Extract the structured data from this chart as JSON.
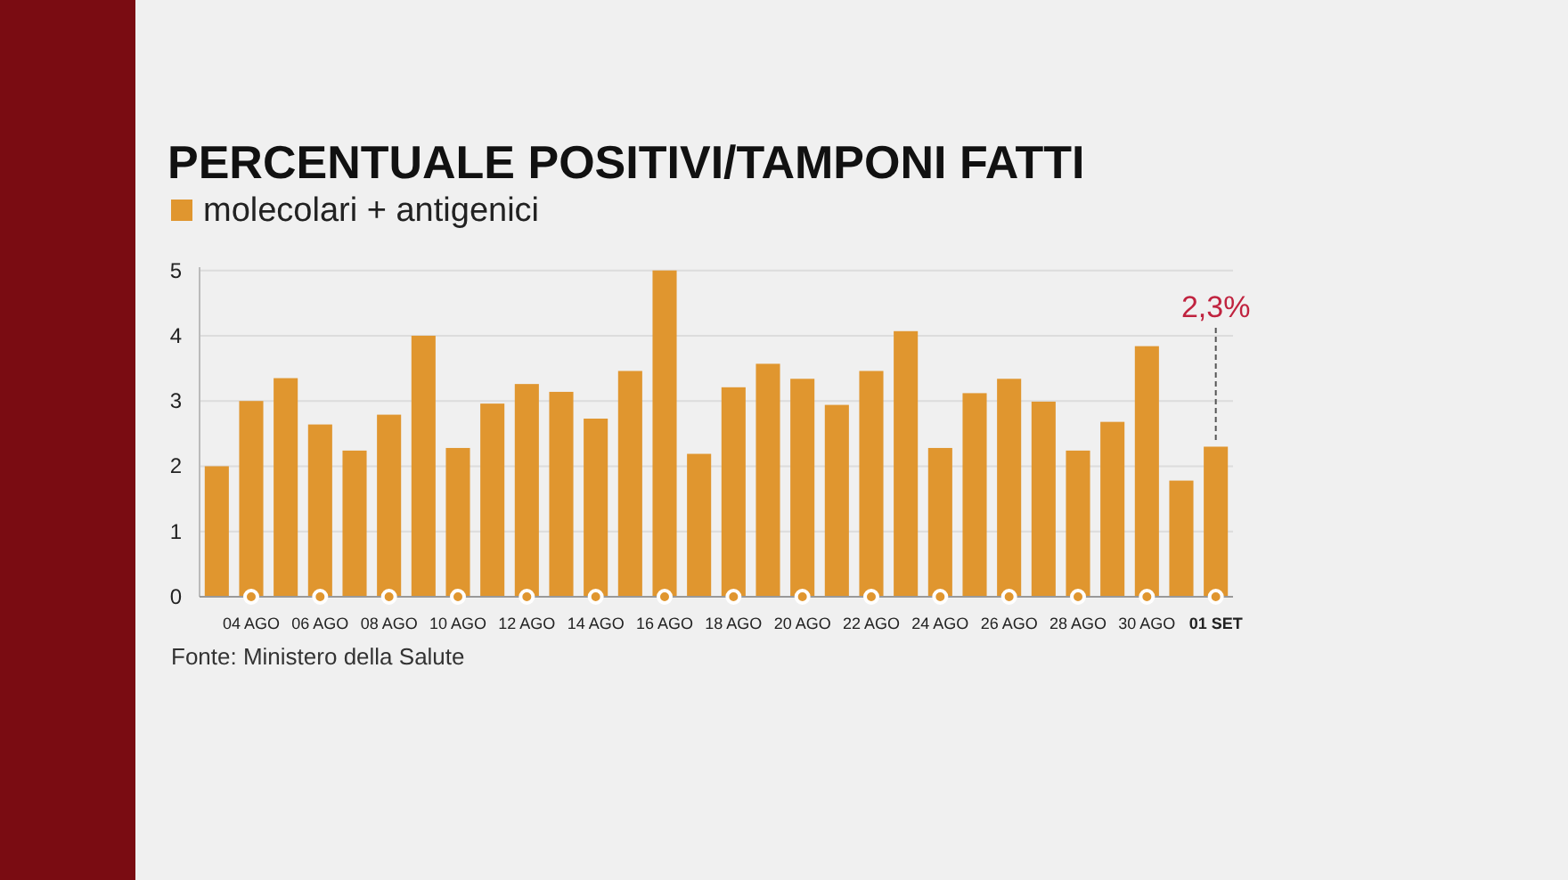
{
  "chart_data": {
    "type": "bar",
    "title": "PERCENTUALE POSITIVI/TAMPONI FATTI",
    "categories": [
      null,
      "04 AGO",
      null,
      "06 AGO",
      null,
      "08 AGO",
      null,
      "10 AGO",
      null,
      "12 AGO",
      null,
      "14 AGO",
      null,
      "16 AGO",
      null,
      "18 AGO",
      null,
      "20 AGO",
      null,
      "22 AGO",
      null,
      "24 AGO",
      null,
      "26 AGO",
      null,
      "28 AGO",
      null,
      "30 AGO",
      null,
      "01 SET"
    ],
    "series": [
      {
        "name": "molecolari + antigenici",
        "color": "#e0962f",
        "values": [
          2.0,
          3.0,
          3.35,
          2.64,
          2.24,
          2.79,
          4.0,
          2.28,
          2.96,
          3.26,
          3.14,
          2.73,
          3.46,
          5.0,
          2.19,
          3.21,
          3.57,
          3.34,
          2.94,
          3.46,
          4.07,
          2.28,
          3.12,
          3.34,
          2.99,
          2.24,
          2.68,
          3.84,
          1.78,
          2.3
        ],
        "value_labels": [
          null,
          null,
          null,
          null,
          null,
          null,
          null,
          null,
          null,
          null,
          null,
          null,
          null,
          null,
          null,
          null,
          null,
          null,
          null,
          null,
          null,
          null,
          null,
          null,
          null,
          null,
          null,
          null,
          null,
          "2,3%"
        ]
      }
    ],
    "ylim": [
      0,
      5.05
    ],
    "yticks": [
      0,
      1,
      2,
      3,
      4,
      5
    ],
    "grid": "y",
    "legend": "top left",
    "annotations": [
      "Fonte: Ministero della Salute"
    ]
  }
}
